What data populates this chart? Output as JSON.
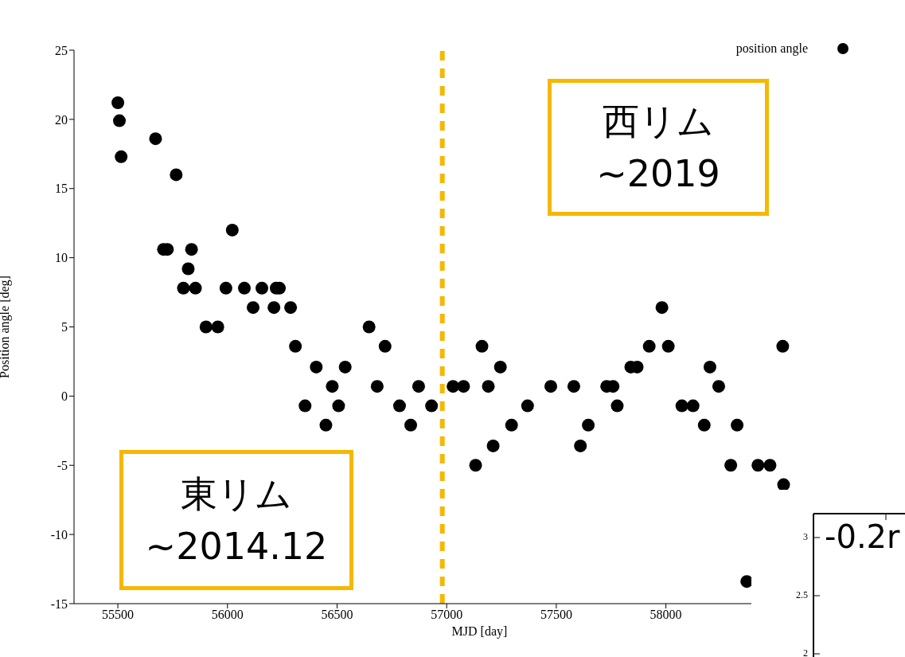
{
  "chart_data": [
    {
      "type": "scatter",
      "xlabel": "MJD [day]",
      "ylabel": "Position angle [deg]",
      "xlim": [
        55300,
        59000
      ],
      "xticks": [
        55500,
        56000,
        56500,
        57000,
        57500,
        58000
      ],
      "ylim": [
        -15,
        25
      ],
      "yticks": [
        -15,
        -10,
        -5,
        0,
        5,
        10,
        15,
        20,
        25
      ],
      "legend": "top right",
      "marker": "circle",
      "grid": false,
      "ref_lines": [
        {
          "axis": "x",
          "value": 56980,
          "color": "#f5b800",
          "line_style": "dashed"
        }
      ],
      "annotations": [
        "西リム",
        "~2019",
        "東リム",
        "~2014.12"
      ],
      "series": [
        {
          "name": "position angle",
          "color": "#000000",
          "x": [
            55500,
            55507,
            55515,
            55672,
            55766,
            55708,
            55726,
            55836,
            55821,
            55799,
            55854,
            55902,
            55956,
            56022,
            55993,
            56077,
            56117,
            56157,
            56212,
            56222,
            56237,
            56288,
            56310,
            56354,
            56405,
            56449,
            56478,
            56507,
            56537,
            56646,
            56683,
            56719,
            56785,
            56836,
            56872,
            56931,
            57029,
            57077,
            57132,
            57161,
            57190,
            57212,
            57245,
            57296,
            57369,
            57475,
            57580,
            57610,
            57646,
            57730,
            57759,
            57778,
            57840,
            57869,
            57924,
            57982,
            58011,
            58073,
            58124,
            58175,
            58201,
            58241,
            58296,
            58325,
            58369,
            58420,
            58475,
            58533,
            58537
          ],
          "values": [
            21.2,
            19.9,
            17.3,
            18.6,
            16.0,
            10.6,
            10.6,
            10.6,
            9.2,
            7.8,
            7.8,
            5.0,
            5.0,
            12.0,
            7.8,
            7.8,
            6.4,
            7.8,
            6.4,
            7.8,
            7.8,
            6.4,
            3.6,
            -0.7,
            2.1,
            -2.1,
            0.7,
            -0.7,
            2.1,
            5.0,
            0.7,
            3.6,
            -0.7,
            -2.1,
            0.7,
            -0.7,
            0.7,
            0.7,
            -5.0,
            3.6,
            0.7,
            -3.6,
            2.1,
            -2.1,
            -0.7,
            0.7,
            0.7,
            -3.6,
            -2.1,
            0.7,
            0.7,
            -0.7,
            2.1,
            2.1,
            3.6,
            6.4,
            3.6,
            -0.7,
            -0.7,
            -2.1,
            2.1,
            0.7,
            -5.0,
            -2.1,
            -13.4,
            -5.0,
            -5.0,
            3.6,
            -6.4
          ]
        }
      ]
    },
    {
      "type": "other",
      "annotations": [
        "-0.2r",
        "3",
        "2.5",
        "2"
      ]
    }
  ]
}
